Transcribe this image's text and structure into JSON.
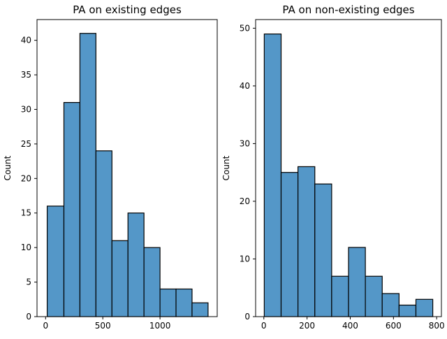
{
  "chart_data": [
    {
      "type": "bar",
      "title": "PA on existing edges",
      "xlabel": "",
      "ylabel": "Count",
      "bin_edges": [
        14,
        160,
        300,
        440,
        580,
        720,
        860,
        1000,
        1140,
        1280,
        1420
      ],
      "values": [
        16,
        31,
        41,
        24,
        11,
        15,
        10,
        4,
        4,
        2
      ],
      "xlim": [
        -75,
        1500
      ],
      "ylim": [
        0,
        43
      ],
      "xticks": [
        0,
        500,
        1000
      ],
      "xtick_labels": [
        "0",
        "500",
        "1000"
      ],
      "yticks": [
        0,
        5,
        10,
        15,
        20,
        25,
        30,
        35,
        40
      ],
      "ytick_labels": [
        "0",
        "5",
        "10",
        "15",
        "20",
        "25",
        "30",
        "35",
        "40"
      ],
      "bar_color": "#5497c8",
      "edge_color": "#000000"
    },
    {
      "type": "bar",
      "title": "PA on non-existing edges",
      "xlabel": "",
      "ylabel": "Count",
      "bin_edges": [
        2,
        80,
        158,
        236,
        314,
        392,
        470,
        548,
        626,
        704,
        782
      ],
      "values": [
        49,
        25,
        26,
        23,
        7,
        12,
        7,
        4,
        2,
        3
      ],
      "xlim": [
        -38,
        822
      ],
      "ylim": [
        0,
        51.5
      ],
      "xticks": [
        0,
        200,
        400,
        600,
        800
      ],
      "xtick_labels": [
        "0",
        "200",
        "400",
        "600",
        "800"
      ],
      "yticks": [
        0,
        10,
        20,
        30,
        40,
        50
      ],
      "ytick_labels": [
        "0",
        "10",
        "20",
        "30",
        "40",
        "50"
      ],
      "bar_color": "#5497c8",
      "edge_color": "#000000"
    }
  ]
}
